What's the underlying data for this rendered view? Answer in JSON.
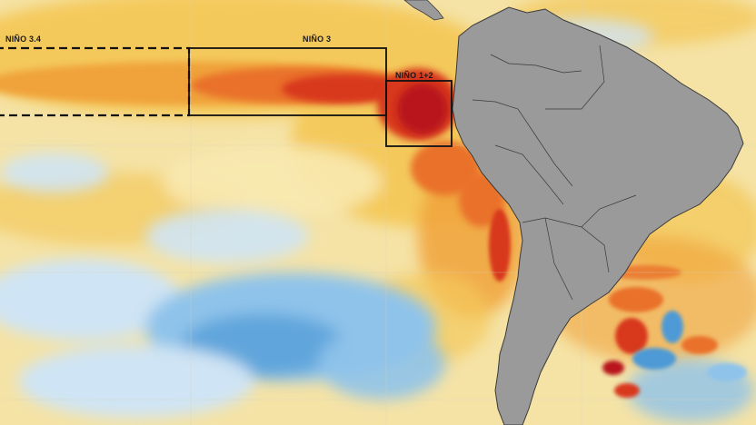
{
  "map": {
    "regions": [
      {
        "id": "nino34",
        "label": "NIÑO 3.4"
      },
      {
        "id": "nino3",
        "label": "NIÑO 3"
      },
      {
        "id": "nino12",
        "label": "NIÑO 1+2"
      }
    ],
    "colors": {
      "ocean_base": "#f5e3a6",
      "cool_light": "#cfe4f4",
      "cool": "#8fc3ea",
      "cool_deep": "#4d9ad6",
      "warm_pale": "#f8e9b0",
      "warm_yellow": "#f4c95c",
      "warm_orange": "#f0a23a",
      "hot_orange": "#e9712a",
      "hot_red": "#d8381c",
      "hot_deep": "#b8161c",
      "land": "#9a9a9a",
      "land_border": "#3a3a3a",
      "box_outline": "#111111",
      "grid": "#d9d2bd"
    }
  }
}
